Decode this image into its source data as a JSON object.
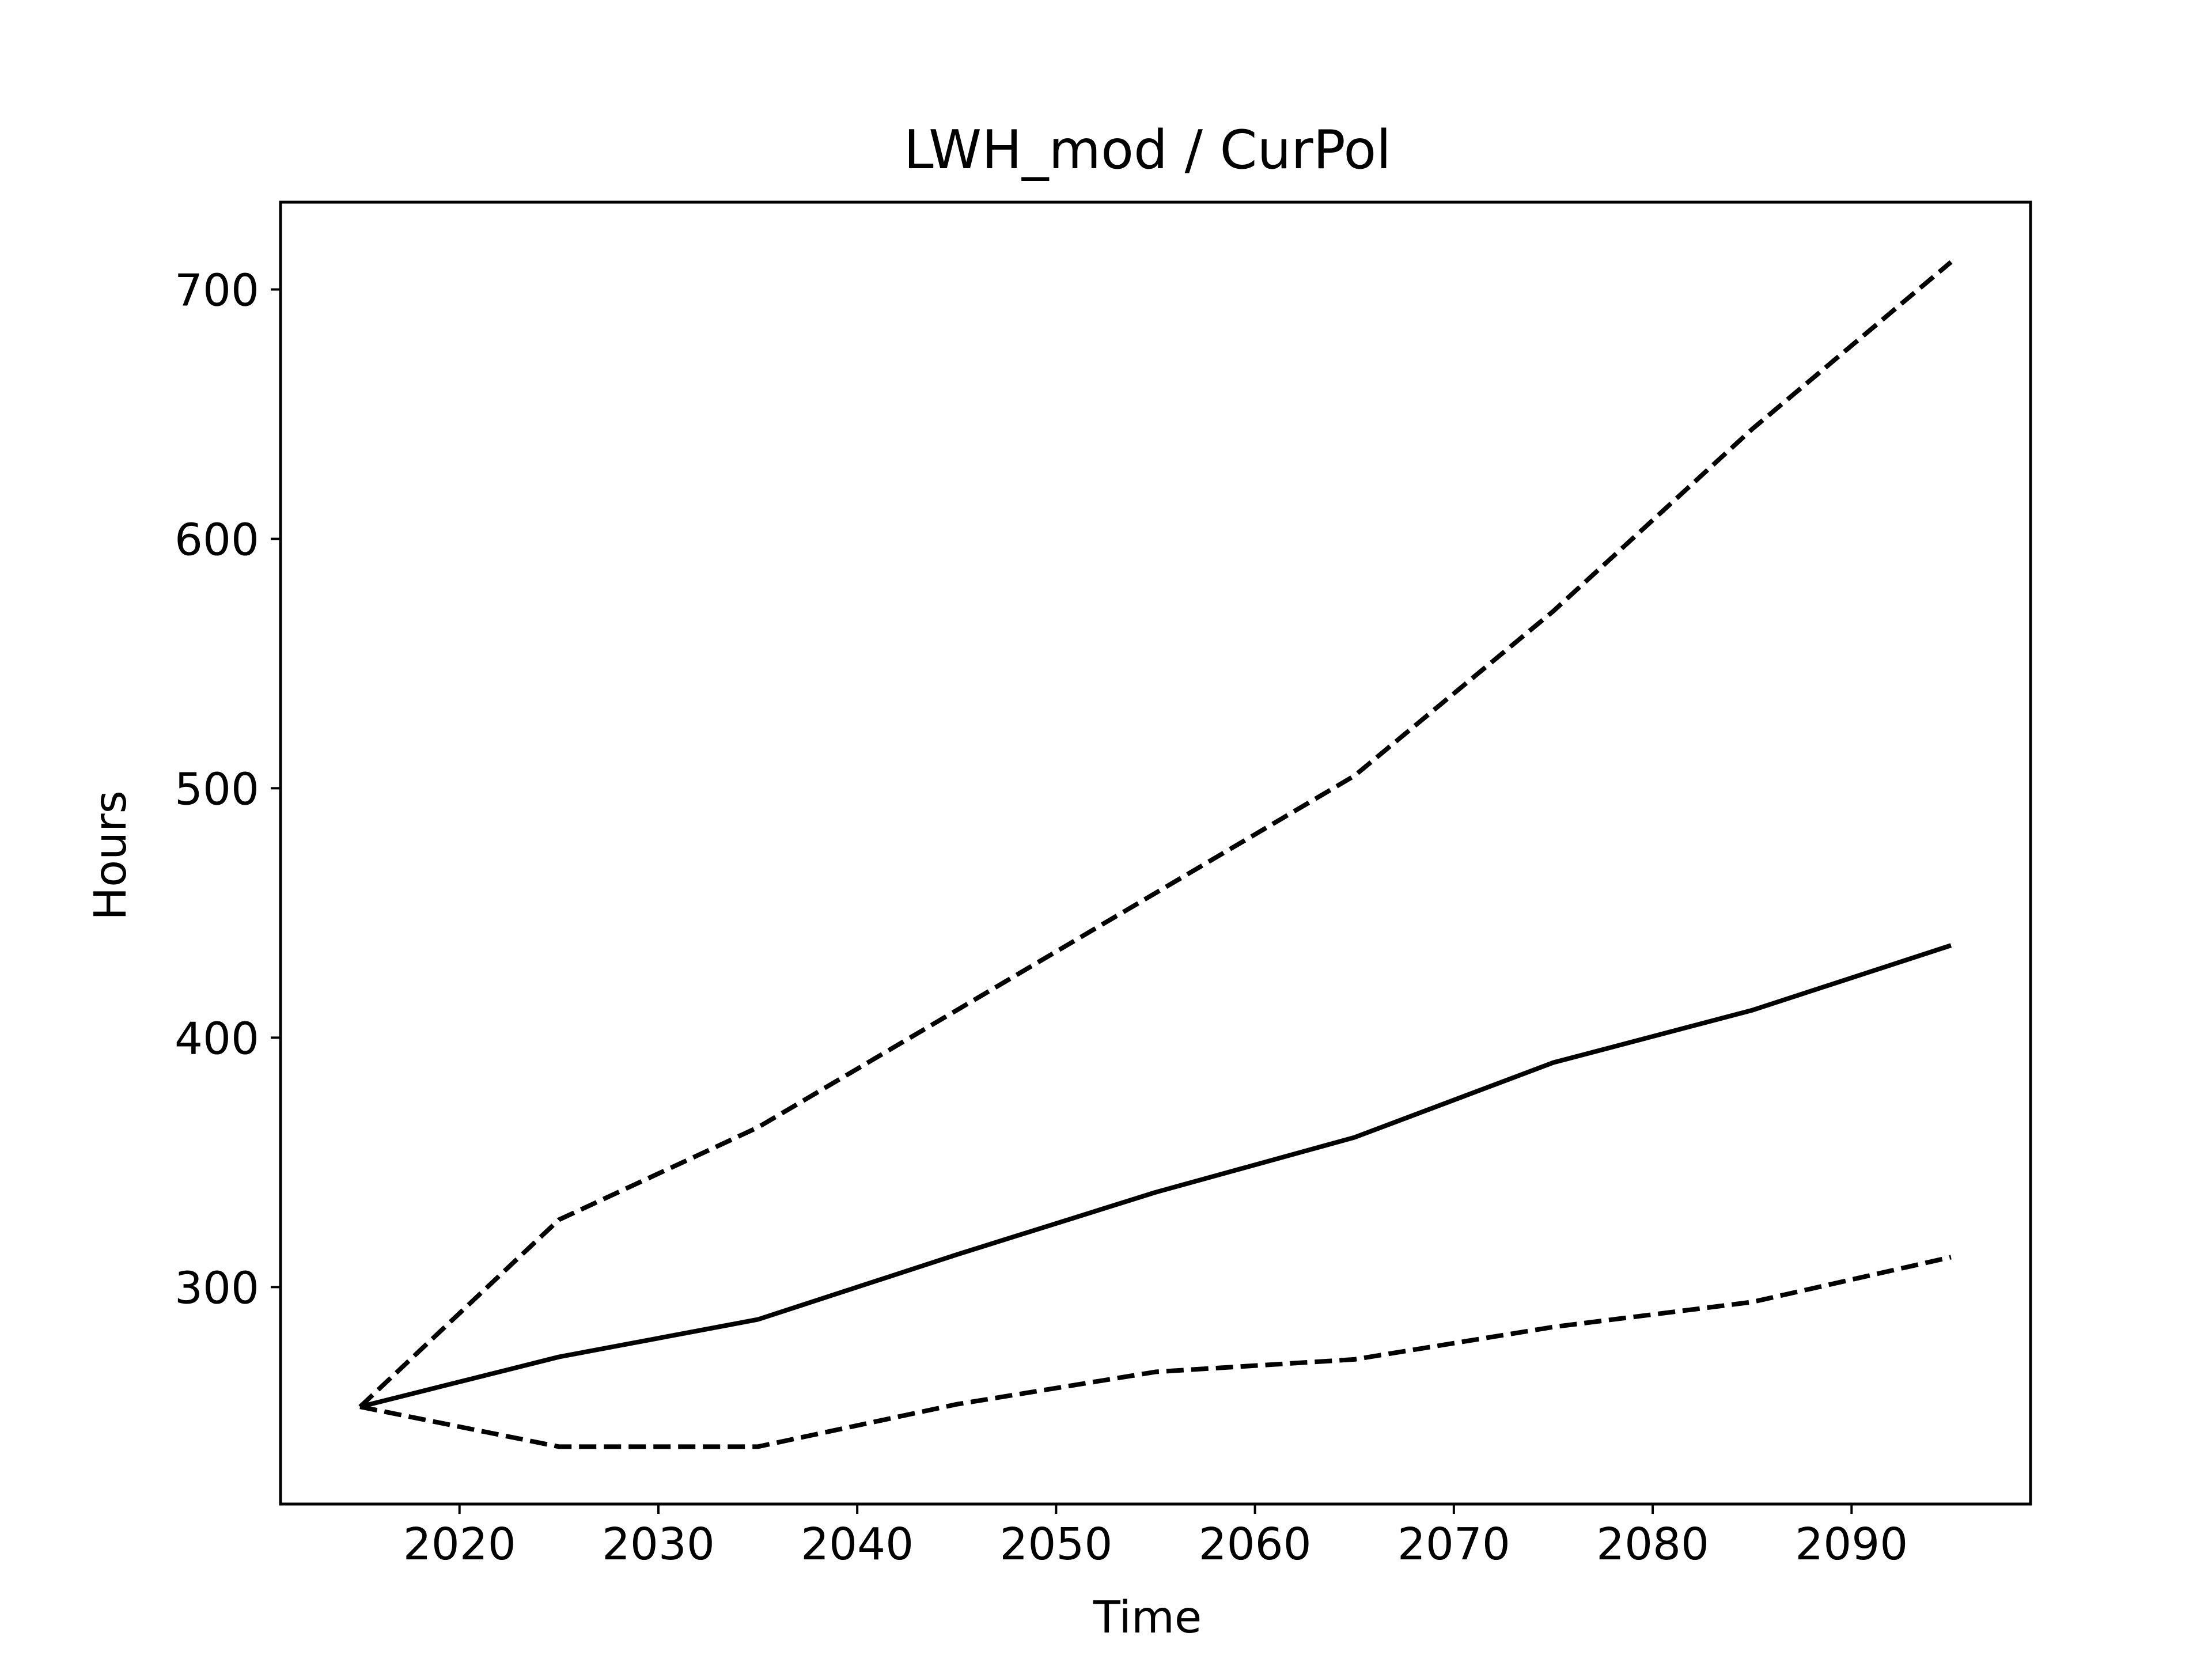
{
  "chart_data": {
    "type": "line",
    "title": "LWH_mod / CurPol",
    "xlabel": "Time",
    "ylabel": "Hours",
    "x": [
      2015,
      2025,
      2035,
      2045,
      2055,
      2065,
      2075,
      2085,
      2095
    ],
    "series": [
      {
        "style": "dashed",
        "color": "#000000",
        "values": [
          252,
          327,
          364,
          411,
          458,
          505,
          571,
          644,
          711
        ]
      },
      {
        "style": "solid",
        "color": "#000000",
        "values": [
          252,
          272,
          287,
          313,
          338,
          360,
          390,
          411,
          437
        ]
      },
      {
        "style": "dashed",
        "color": "#000000",
        "values": [
          252,
          236,
          236,
          253,
          266,
          271,
          284,
          294,
          312
        ]
      }
    ],
    "xticks": [
      "2020",
      "2030",
      "2040",
      "2050",
      "2060",
      "2070",
      "2080",
      "2090"
    ],
    "yticks": [
      "300",
      "400",
      "500",
      "600",
      "700"
    ],
    "xlim": [
      2011,
      2099
    ],
    "ylim": [
      213,
      735
    ],
    "grid": false,
    "legend": false
  }
}
